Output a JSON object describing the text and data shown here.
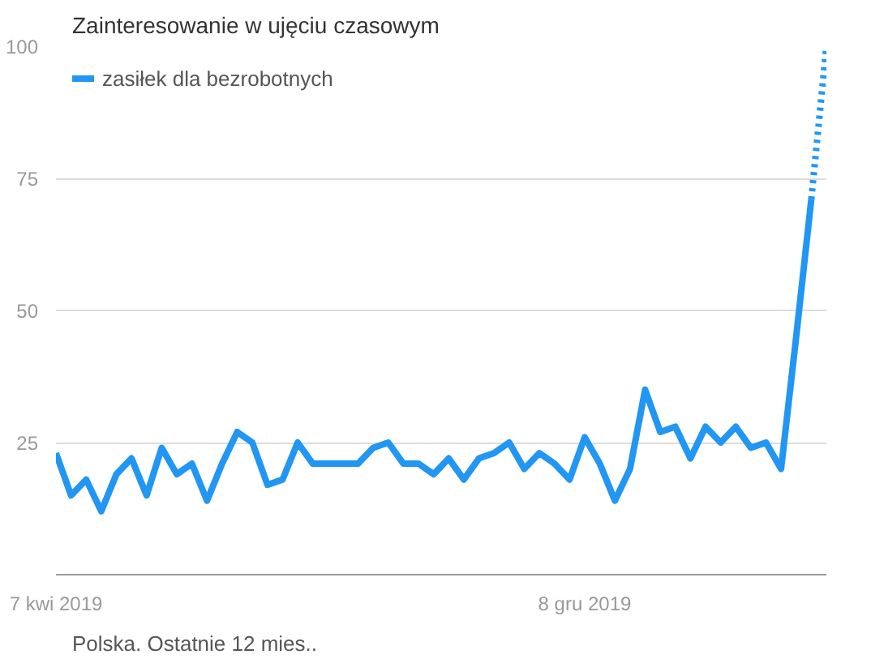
{
  "chart_data": {
    "type": "line",
    "title": "Zainteresowanie w ujęciu czasowym",
    "annotations": [
      "Polska. Ostatnie 12 mies.."
    ],
    "x": [
      "2019-04-07",
      "2019-04-14",
      "2019-04-21",
      "2019-04-28",
      "2019-05-05",
      "2019-05-12",
      "2019-05-19",
      "2019-05-26",
      "2019-06-02",
      "2019-06-09",
      "2019-06-16",
      "2019-06-23",
      "2019-06-30",
      "2019-07-07",
      "2019-07-14",
      "2019-07-21",
      "2019-07-28",
      "2019-08-04",
      "2019-08-11",
      "2019-08-18",
      "2019-08-25",
      "2019-09-01",
      "2019-09-08",
      "2019-09-15",
      "2019-09-22",
      "2019-09-29",
      "2019-10-06",
      "2019-10-13",
      "2019-10-20",
      "2019-10-27",
      "2019-11-03",
      "2019-11-10",
      "2019-11-17",
      "2019-11-24",
      "2019-12-01",
      "2019-12-08",
      "2019-12-15",
      "2019-12-22",
      "2019-12-29",
      "2020-01-05",
      "2020-01-12",
      "2020-01-19",
      "2020-01-26",
      "2020-02-02",
      "2020-02-09",
      "2020-02-16",
      "2020-02-23",
      "2020-03-01",
      "2020-03-08",
      "2020-03-15",
      "2020-03-22"
    ],
    "series": [
      {
        "name": "zasiłek dla bezrobotnych",
        "color": "#2196f3",
        "line_style": "solid",
        "values": [
          23,
          15,
          18,
          12,
          19,
          22,
          15,
          24,
          19,
          21,
          14,
          21,
          27,
          25,
          17,
          18,
          25,
          21,
          21,
          21,
          21,
          24,
          25,
          21,
          21,
          19,
          22,
          18,
          22,
          23,
          25,
          20,
          23,
          21,
          18,
          26,
          21,
          14,
          20,
          35,
          27,
          28,
          22,
          28,
          25,
          28,
          24,
          25,
          20,
          45,
          71
        ]
      },
      {
        "color": "#2196f3",
        "line_style": "dotted",
        "x": [
          "2020-03-22",
          "2020-03-29"
        ],
        "values": [
          71,
          100
        ]
      }
    ],
    "xlim": [
      "2019-04-07",
      "2020-03-29"
    ],
    "xticks": [
      {
        "value": "2019-04-07",
        "label": "7 kwi 2019"
      },
      {
        "value": "2019-12-08",
        "label": "8 gru 2019"
      }
    ],
    "ylim": [
      0,
      100
    ],
    "yticks": [
      25,
      50,
      75,
      100
    ],
    "grid": "y",
    "legend": "top left",
    "marker": "none"
  }
}
